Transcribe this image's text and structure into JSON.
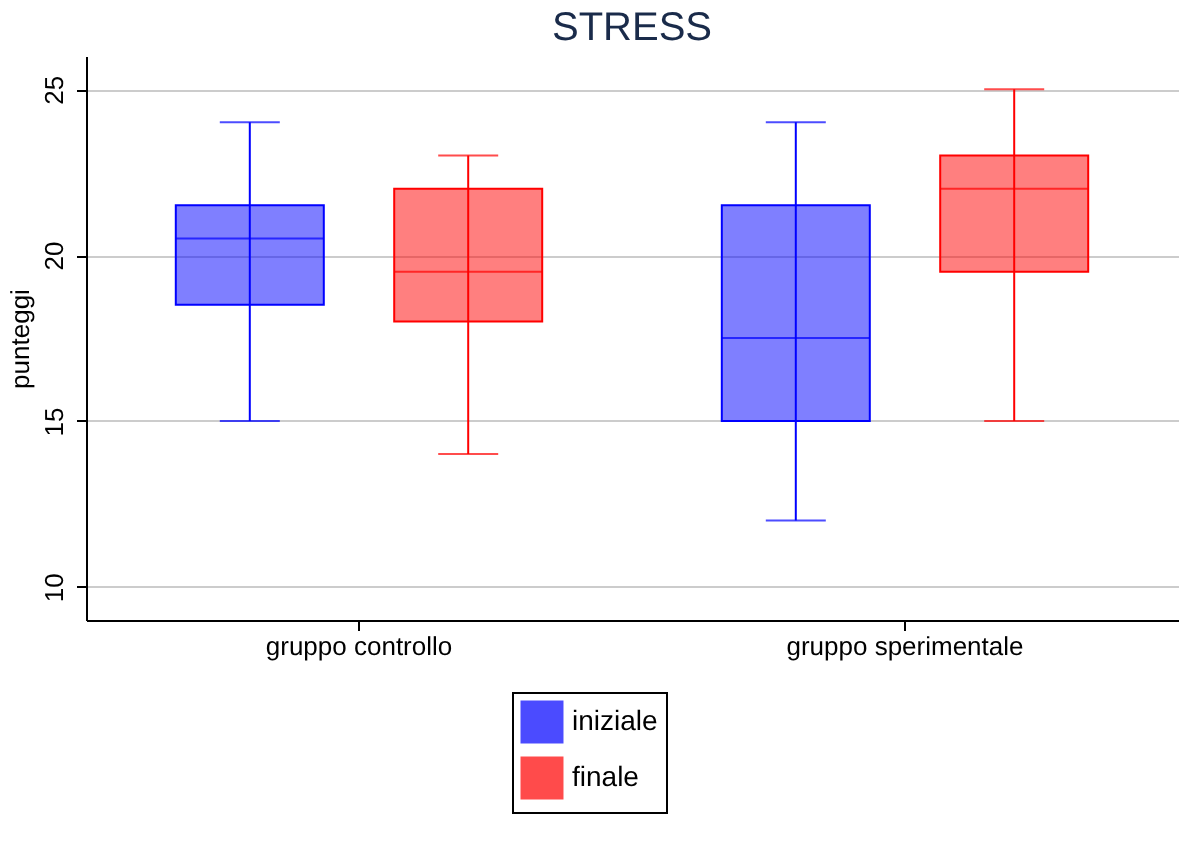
{
  "chart_data": {
    "type": "box",
    "title": "STRESS",
    "ylabel": "punteggi",
    "categories": [
      "gruppo controllo",
      "gruppo sperimentale"
    ],
    "series": [
      {
        "name": "iniziale",
        "color": "#0000ff",
        "boxes": [
          {
            "low": 15,
            "q1": 18.5,
            "median": 20.5,
            "q3": 21.5,
            "high": 24
          },
          {
            "low": 12,
            "q1": 15,
            "median": 17.5,
            "q3": 21.5,
            "high": 24
          }
        ]
      },
      {
        "name": "finale",
        "color": "#ff0000",
        "boxes": [
          {
            "low": 14,
            "q1": 18,
            "median": 19.5,
            "q3": 22,
            "high": 23
          },
          {
            "low": 15,
            "q1": 19.5,
            "median": 22,
            "q3": 23,
            "high": 25
          }
        ]
      }
    ],
    "ylim": [
      9,
      26
    ],
    "yticks": [
      10,
      15,
      20,
      25
    ],
    "grid": "y",
    "legend": "bottom"
  }
}
